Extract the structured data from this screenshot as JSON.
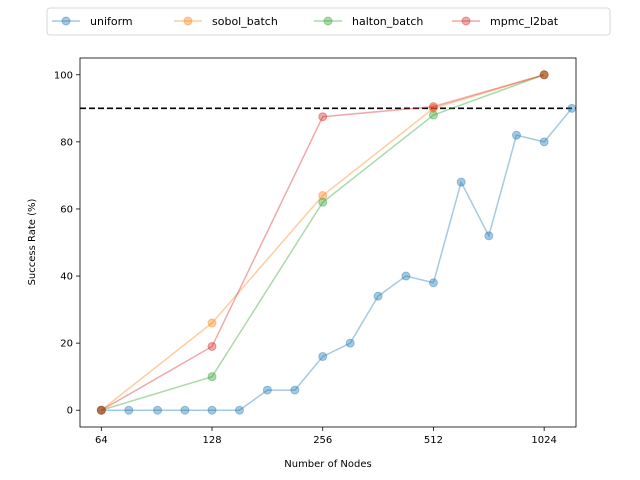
{
  "chart_data": {
    "type": "line",
    "xlabel": "Number of Nodes",
    "ylabel": "Success Rate (%)",
    "x_scale": "log2",
    "xlim": [
      56,
      1250
    ],
    "ylim": [
      -5,
      105
    ],
    "x_ticks": [
      64,
      128,
      256,
      512,
      1024
    ],
    "x_tick_labels": [
      "64",
      "128",
      "256",
      "512",
      "1024"
    ],
    "y_ticks": [
      0,
      20,
      40,
      60,
      80,
      100
    ],
    "y_tick_labels": [
      "0",
      "20",
      "40",
      "60",
      "80",
      "100"
    ],
    "reference_line": {
      "y": 90,
      "style": "dashed",
      "color": "#000000"
    },
    "legend_position": "top-center, above plot",
    "grid": false,
    "series": [
      {
        "name": "uniform",
        "color": "#1f77b4",
        "x": [
          64,
          76,
          91,
          108,
          128,
          152,
          181,
          215,
          256,
          304,
          362,
          431,
          512,
          609,
          724,
          861,
          1024,
          1218
        ],
        "y": [
          0,
          0,
          0,
          0,
          0,
          0,
          6,
          6,
          16,
          20,
          34,
          40,
          38,
          68,
          52,
          82,
          80,
          90
        ]
      },
      {
        "name": "sobol_batch",
        "color": "#ff7f0e",
        "x": [
          64,
          128,
          256,
          512,
          1024
        ],
        "y": [
          0,
          26,
          64,
          90,
          100
        ]
      },
      {
        "name": "halton_batch",
        "color": "#2ca02c",
        "x": [
          64,
          128,
          256,
          512,
          1024
        ],
        "y": [
          0,
          10,
          62,
          88,
          100
        ]
      },
      {
        "name": "mpmc_l2bat",
        "color": "#d62728",
        "x": [
          64,
          128,
          256,
          512,
          1024
        ],
        "y": [
          0,
          19,
          87.5,
          90.5,
          100
        ]
      }
    ]
  }
}
